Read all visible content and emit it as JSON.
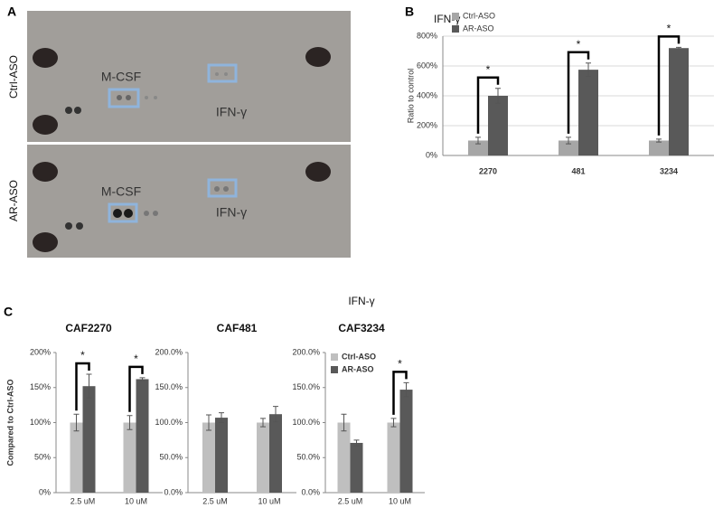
{
  "panel_a": {
    "label": "A",
    "rows": [
      {
        "label": "Ctrl-ASO",
        "spots": [
          "M-CSF",
          "IFN-γ"
        ]
      },
      {
        "label": "AR-ASO",
        "spots": [
          "M-CSF",
          "IFN-γ"
        ]
      }
    ]
  },
  "panel_labels": {
    "b": "B",
    "c": "C"
  },
  "c_title": "IFN-γ",
  "chart_data": [
    {
      "type": "bar",
      "title": "IFN-γ",
      "y_label": "Ratio to control",
      "categories": [
        "2270",
        "481",
        "3234"
      ],
      "series": [
        {
          "name": "Ctrl-ASO",
          "color": "#a6a6a6",
          "values": [
            100,
            100,
            100
          ],
          "errors": [
            22,
            22,
            10
          ]
        },
        {
          "name": "AR-ASO",
          "color": "#595959",
          "values": [
            400,
            575,
            720
          ],
          "errors": [
            50,
            45,
            5
          ]
        }
      ],
      "ylim": [
        0,
        800
      ],
      "yticks": [
        {
          "value": 0,
          "label": "0%"
        },
        {
          "value": 200,
          "label": "200%"
        },
        {
          "value": 400,
          "label": "400%"
        },
        {
          "value": 600,
          "label": "600%"
        },
        {
          "value": 800,
          "label": "800%"
        }
      ],
      "significance": [
        "*",
        "*",
        "*"
      ],
      "legend": "top-left"
    },
    {
      "type": "bar",
      "title": "CAF2270",
      "y_label": "Compared to Ctrl-ASO",
      "categories": [
        "2.5 uM",
        "10 uM"
      ],
      "series": [
        {
          "name": "Ctrl-ASO",
          "color": "#bfbfbf",
          "values": [
            100,
            100
          ],
          "errors": [
            12,
            10
          ]
        },
        {
          "name": "AR-ASO",
          "color": "#595959",
          "values": [
            152,
            162
          ],
          "errors": [
            17,
            2
          ]
        }
      ],
      "ylim": [
        0,
        200
      ],
      "yticks": [
        {
          "value": 0,
          "label": "0%"
        },
        {
          "value": 50,
          "label": "50%"
        },
        {
          "value": 100,
          "label": "100%"
        },
        {
          "value": 150,
          "label": "150%"
        },
        {
          "value": 200,
          "label": "200%"
        }
      ],
      "significance": [
        "*",
        "*"
      ],
      "legend": false
    },
    {
      "type": "bar",
      "title": "CAF481",
      "categories": [
        "2.5 uM",
        "10 uM"
      ],
      "series": [
        {
          "name": "Ctrl-ASO",
          "color": "#bfbfbf",
          "values": [
            100,
            100
          ],
          "errors": [
            11,
            6
          ]
        },
        {
          "name": "AR-ASO",
          "color": "#595959",
          "values": [
            107,
            112
          ],
          "errors": [
            7,
            11
          ]
        }
      ],
      "ylim": [
        0,
        200
      ],
      "yticks": [
        {
          "value": 0,
          "label": "0.0%"
        },
        {
          "value": 50,
          "label": "50.0%"
        },
        {
          "value": 100,
          "label": "100.0%"
        },
        {
          "value": 150,
          "label": "150.0%"
        },
        {
          "value": 200,
          "label": "200.0%"
        }
      ],
      "significance": [
        null,
        null
      ],
      "legend": false
    },
    {
      "type": "bar",
      "title": "CAF3234",
      "categories": [
        "2.5 uM",
        "10 uM"
      ],
      "series": [
        {
          "name": "Ctrl-ASO",
          "color": "#bfbfbf",
          "values": [
            100,
            100
          ],
          "errors": [
            12,
            6
          ]
        },
        {
          "name": "AR-ASO",
          "color": "#595959",
          "values": [
            71,
            147
          ],
          "errors": [
            4,
            10
          ]
        }
      ],
      "ylim": [
        0,
        200
      ],
      "yticks": [
        {
          "value": 0,
          "label": "0.0%"
        },
        {
          "value": 50,
          "label": "50.0%"
        },
        {
          "value": 100,
          "label": "100.0%"
        },
        {
          "value": 150,
          "label": "150.0%"
        },
        {
          "value": 200,
          "label": "200.0%"
        }
      ],
      "significance": [
        null,
        "*"
      ],
      "legend": "top-left"
    }
  ]
}
